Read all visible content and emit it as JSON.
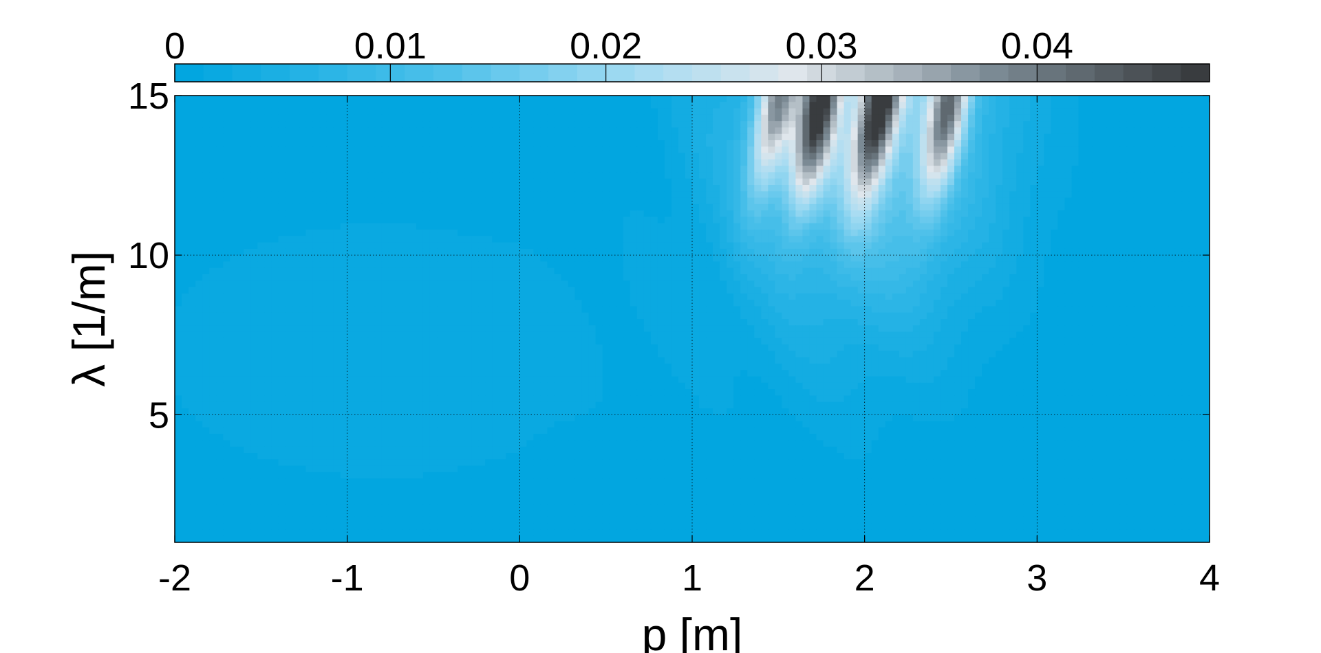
{
  "chart_data": {
    "type": "heatmap",
    "title": "",
    "xlabel": "p [m]",
    "ylabel": "λ [1/m]",
    "xlim": [
      -2,
      4
    ],
    "ylim": [
      1,
      15
    ],
    "x_ticks": [
      {
        "value": -2,
        "label": "-2"
      },
      {
        "value": -1,
        "label": "-1"
      },
      {
        "value": 0,
        "label": "0"
      },
      {
        "value": 1,
        "label": "1"
      },
      {
        "value": 2,
        "label": "2"
      },
      {
        "value": 3,
        "label": "3"
      },
      {
        "value": 4,
        "label": "4"
      }
    ],
    "y_ticks": [
      {
        "value": 5,
        "label": "5"
      },
      {
        "value": 10,
        "label": "10"
      },
      {
        "value": 15,
        "label": "15"
      }
    ],
    "grid": true,
    "colorbar": {
      "placement": "top",
      "range": [
        0,
        0.048
      ],
      "levels": 36,
      "ticks": [
        {
          "value": 0,
          "label": "0"
        },
        {
          "value": 0.01,
          "label": "0.01"
        },
        {
          "value": 0.02,
          "label": "0.02"
        },
        {
          "value": 0.03,
          "label": "0.03"
        },
        {
          "value": 0.04,
          "label": "0.04"
        }
      ],
      "colormap": [
        {
          "t": 0.0,
          "color": "#02a6e0"
        },
        {
          "t": 0.25,
          "color": "#4cc0ea"
        },
        {
          "t": 0.45,
          "color": "#a6dcf2"
        },
        {
          "t": 0.6,
          "color": "#dfe6ec"
        },
        {
          "t": 0.8,
          "color": "#7b8a94"
        },
        {
          "t": 1.0,
          "color": "#393c3f"
        }
      ]
    },
    "field_peaks": [
      {
        "p": 1.5,
        "lambda": 14.8,
        "value": 0.036
      },
      {
        "p": 1.75,
        "lambda": 14.5,
        "value": 0.044
      },
      {
        "p": 2.1,
        "lambda": 14.8,
        "value": 0.048
      },
      {
        "p": 2.5,
        "lambda": 14.8,
        "value": 0.04
      }
    ]
  }
}
